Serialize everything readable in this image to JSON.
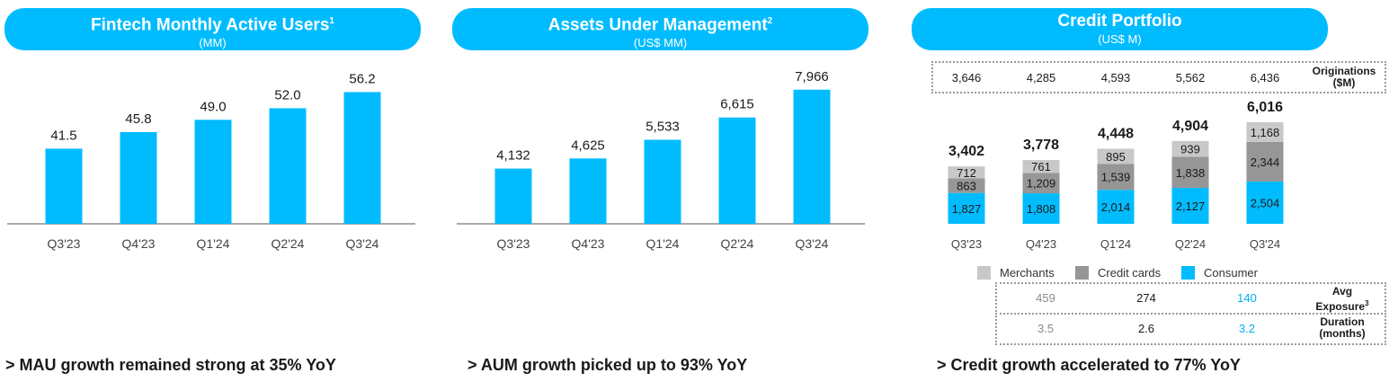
{
  "panels": {
    "mau": {
      "title": "Fintech Monthly Active Users",
      "sup": "1",
      "subtitle": "(MM)"
    },
    "aum": {
      "title": "Assets Under Management",
      "sup": "2",
      "subtitle": "(US$ MM)"
    },
    "credit": {
      "title": "Credit Portfolio",
      "sup": "",
      "subtitle": "(US$ M)"
    }
  },
  "colors": {
    "accent": "#00bcff",
    "merchants": "#c8c8c8",
    "credit_cards": "#969696",
    "consumer": "#00bcff"
  },
  "originations": {
    "label_line1": "Originations",
    "label_line2": "($M)",
    "values": [
      "3,646",
      "4,285",
      "4,593",
      "5,562",
      "6,436"
    ]
  },
  "legend": {
    "merchants": "Merchants",
    "credit_cards": "Credit cards",
    "consumer": "Consumer"
  },
  "metrics": {
    "avg_exposure": {
      "label_line1": "Avg",
      "label_line2": "Exposure",
      "sup": "3",
      "merchants": "459",
      "credit_cards": "274",
      "consumer": "140"
    },
    "duration": {
      "label_line1": "Duration",
      "label_line2": "(months)",
      "merchants": "3.5",
      "credit_cards": "2.6",
      "consumer": "3.2"
    }
  },
  "footers": {
    "mau": "> MAU growth remained strong at 35% YoY",
    "aum": "> AUM growth picked up to 93% YoY",
    "credit": ">  Credit growth accelerated to 77% YoY"
  },
  "chart_data": [
    {
      "type": "bar",
      "title": "Fintech Monthly Active Users",
      "categories": [
        "Q3'23",
        "Q4'23",
        "Q1'24",
        "Q2'24",
        "Q3'24"
      ],
      "values": [
        41.5,
        45.8,
        49.0,
        52.0,
        56.2
      ],
      "labels": [
        "41.5",
        "45.8",
        "49.0",
        "52.0",
        "56.2"
      ],
      "ylim": [
        22,
        57
      ]
    },
    {
      "type": "bar",
      "title": "Assets Under Management",
      "categories": [
        "Q3'23",
        "Q4'23",
        "Q1'24",
        "Q2'24",
        "Q3'24"
      ],
      "values": [
        4132,
        4625,
        5533,
        6615,
        7966
      ],
      "labels": [
        "4,132",
        "4,625",
        "5,533",
        "6,615",
        "7,966"
      ],
      "ylim": [
        1450,
        8000
      ]
    },
    {
      "type": "bar",
      "stacked": true,
      "title": "Credit Portfolio",
      "categories": [
        "Q3'23",
        "Q4'23",
        "Q1'24",
        "Q2'24",
        "Q3'24"
      ],
      "series": [
        {
          "name": "Consumer",
          "values": [
            1827,
            1808,
            2014,
            2127,
            2504
          ],
          "labels": [
            "1,827",
            "1,808",
            "2,014",
            "2,127",
            "2,504"
          ]
        },
        {
          "name": "Credit cards",
          "values": [
            863,
            1209,
            1539,
            1838,
            2344
          ],
          "labels": [
            "863",
            "1,209",
            "1,539",
            "1,838",
            "2,344"
          ]
        },
        {
          "name": "Merchants",
          "values": [
            712,
            761,
            895,
            939,
            1168
          ],
          "labels": [
            "712",
            "761",
            "895",
            "939",
            "1,168"
          ]
        }
      ],
      "totals": [
        "3,402",
        "3,778",
        "4,448",
        "4,904",
        "6,016"
      ],
      "ylim": [
        0,
        6016
      ]
    }
  ]
}
